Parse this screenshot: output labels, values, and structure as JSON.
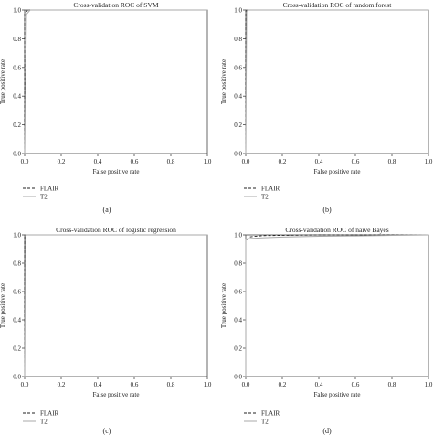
{
  "chart_data": [
    {
      "type": "line",
      "title": "Cross-validation ROC of SVM",
      "xlabel": "False positive rate",
      "ylabel": "True positive rate",
      "xlim": [
        0,
        1
      ],
      "ylim": [
        0,
        1
      ],
      "xticks": [
        "0.0",
        "0.2",
        "0.4",
        "0.6",
        "0.8",
        "1.0"
      ],
      "yticks": [
        "0.0",
        "0.2",
        "0.4",
        "0.6",
        "0.8",
        "1.0"
      ],
      "panel_label": "(a)",
      "legend_position": "bottom-left, below axes",
      "series": [
        {
          "name": "FLAIR",
          "style": "dashed",
          "color": "#222222",
          "x": [
            0,
            0,
            0.02,
            1
          ],
          "y": [
            0,
            0.98,
            1,
            1
          ]
        },
        {
          "name": "T2",
          "style": "solid",
          "color": "#aaaaaa",
          "x": [
            0,
            0.01,
            0.03,
            1
          ],
          "y": [
            0,
            0.97,
            1,
            1
          ]
        }
      ]
    },
    {
      "type": "line",
      "title": "Cross-validation ROC of random forest",
      "xlabel": "False positive rate",
      "ylabel": "True positive rate",
      "xlim": [
        0,
        1
      ],
      "ylim": [
        0,
        1
      ],
      "xticks": [
        "0.0",
        "0.2",
        "0.4",
        "0.6",
        "0.8",
        "1.0"
      ],
      "yticks": [
        "0.0",
        "0.2",
        "0.4",
        "0.6",
        "0.8",
        "1.0"
      ],
      "panel_label": "(b)",
      "legend_position": "bottom-left, below axes",
      "series": [
        {
          "name": "FLAIR",
          "style": "dashed",
          "color": "#222222",
          "x": [
            0,
            0,
            0.01,
            1
          ],
          "y": [
            0,
            0.99,
            1,
            1
          ]
        },
        {
          "name": "T2",
          "style": "solid",
          "color": "#aaaaaa",
          "x": [
            0,
            0.005,
            0.01,
            1
          ],
          "y": [
            0,
            0.99,
            1,
            1
          ]
        }
      ]
    },
    {
      "type": "line",
      "title": "Cross-validation ROC of logistic regression",
      "xlabel": "False positive rate",
      "ylabel": "True positive rate",
      "xlim": [
        0,
        1
      ],
      "ylim": [
        0,
        1
      ],
      "xticks": [
        "0.0",
        "0.2",
        "0.4",
        "0.6",
        "0.8",
        "1.0"
      ],
      "yticks": [
        "0.0",
        "0.2",
        "0.4",
        "0.6",
        "0.8",
        "1.0"
      ],
      "panel_label": "(c)",
      "legend_position": "bottom-left, below axes",
      "series": [
        {
          "name": "FLAIR",
          "style": "dashed",
          "color": "#222222",
          "x": [
            0,
            0,
            0.01,
            1
          ],
          "y": [
            0,
            0.99,
            1,
            1
          ]
        },
        {
          "name": "T2",
          "style": "solid",
          "color": "#aaaaaa",
          "x": [
            0,
            0.005,
            0.01,
            1
          ],
          "y": [
            0,
            0.99,
            1,
            1
          ]
        }
      ]
    },
    {
      "type": "line",
      "title": "Cross-validation ROC of naive Bayes",
      "xlabel": "False positive rate",
      "ylabel": "True positive rate",
      "xlim": [
        0,
        1
      ],
      "ylim": [
        0,
        1
      ],
      "xticks": [
        "0.0",
        "0.2",
        "0.4",
        "0.6",
        "0.8",
        "1.0"
      ],
      "yticks": [
        "0.0",
        "0.2",
        "0.4",
        "0.6",
        "0.8",
        "1.0"
      ],
      "panel_label": "(d)",
      "legend_position": "bottom-left, below axes",
      "series": [
        {
          "name": "FLAIR",
          "style": "dashed",
          "color": "#222222",
          "x": [
            0,
            0,
            0.02,
            0.05,
            0.1,
            0.2,
            0.4,
            0.6,
            1
          ],
          "y": [
            0,
            0.96,
            0.985,
            0.99,
            0.995,
            0.997,
            1,
            1,
            1
          ]
        },
        {
          "name": "T2",
          "style": "solid",
          "color": "#aaaaaa",
          "x": [
            0,
            0,
            0.03,
            0.1,
            0.2,
            0.4,
            0.6,
            0.8,
            1
          ],
          "y": [
            0,
            0.97,
            0.975,
            0.98,
            0.985,
            0.99,
            0.993,
            0.997,
            1
          ]
        }
      ]
    }
  ]
}
